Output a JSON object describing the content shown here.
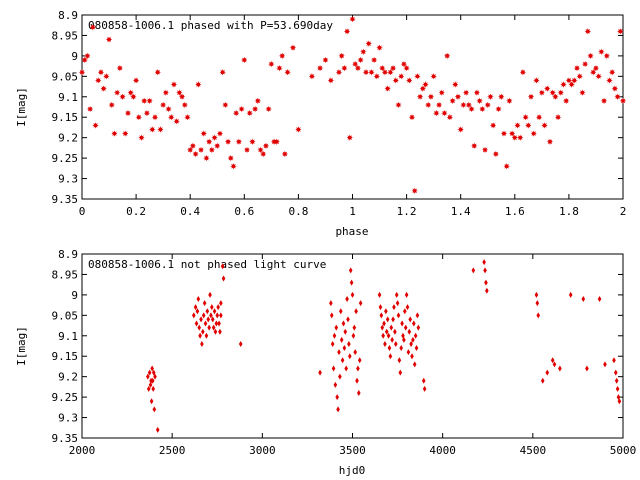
{
  "chart_data": [
    {
      "type": "scatter",
      "title": "080858-1006.1 phased with P=53.690day",
      "xlabel": "phase",
      "ylabel": "I[mag]",
      "xlim": [
        0,
        2
      ],
      "ylim": [
        9.35,
        8.9
      ],
      "y_inverted": true,
      "x_ticks": [
        "0",
        "0.2",
        "0.4",
        "0.6",
        "0.8",
        "1",
        "1.2",
        "1.4",
        "1.6",
        "1.8",
        "2"
      ],
      "y_ticks": [
        "8.9",
        "8.95",
        "9",
        "9.05",
        "9.1",
        "9.15",
        "9.2",
        "9.25",
        "9.3",
        "9.35"
      ],
      "marker": "star",
      "color": "#e00000",
      "points": [
        [
          0.0,
          9.04
        ],
        [
          0.01,
          9.01
        ],
        [
          0.02,
          9.0
        ],
        [
          0.03,
          9.13
        ],
        [
          0.04,
          8.93
        ],
        [
          0.05,
          9.17
        ],
        [
          0.06,
          9.06
        ],
        [
          0.07,
          9.04
        ],
        [
          0.08,
          9.08
        ],
        [
          0.09,
          9.05
        ],
        [
          0.1,
          8.96
        ],
        [
          0.11,
          9.12
        ],
        [
          0.12,
          9.19
        ],
        [
          0.13,
          9.09
        ],
        [
          0.14,
          9.03
        ],
        [
          0.15,
          9.1
        ],
        [
          0.16,
          9.19
        ],
        [
          0.17,
          9.14
        ],
        [
          0.18,
          9.09
        ],
        [
          0.19,
          9.1
        ],
        [
          0.2,
          9.06
        ],
        [
          0.21,
          9.15
        ],
        [
          0.22,
          9.2
        ],
        [
          0.23,
          9.11
        ],
        [
          0.24,
          9.14
        ],
        [
          0.25,
          9.11
        ],
        [
          0.26,
          9.18
        ],
        [
          0.27,
          9.15
        ],
        [
          0.28,
          9.04
        ],
        [
          0.29,
          9.18
        ],
        [
          0.3,
          9.12
        ],
        [
          0.31,
          9.09
        ],
        [
          0.32,
          9.13
        ],
        [
          0.33,
          9.15
        ],
        [
          0.34,
          9.07
        ],
        [
          0.35,
          9.16
        ],
        [
          0.36,
          9.09
        ],
        [
          0.37,
          9.1
        ],
        [
          0.38,
          9.12
        ],
        [
          0.39,
          9.15
        ],
        [
          0.4,
          9.23
        ],
        [
          0.41,
          9.22
        ],
        [
          0.42,
          9.24
        ],
        [
          0.43,
          9.07
        ],
        [
          0.44,
          9.23
        ],
        [
          0.45,
          9.19
        ],
        [
          0.46,
          9.25
        ],
        [
          0.47,
          9.21
        ],
        [
          0.48,
          9.23
        ],
        [
          0.49,
          9.2
        ],
        [
          0.5,
          9.22
        ],
        [
          0.51,
          9.19
        ],
        [
          0.52,
          9.04
        ],
        [
          0.53,
          9.12
        ],
        [
          0.54,
          9.21
        ],
        [
          0.55,
          9.25
        ],
        [
          0.56,
          9.27
        ],
        [
          0.57,
          9.14
        ],
        [
          0.58,
          9.21
        ],
        [
          0.59,
          9.13
        ],
        [
          0.6,
          9.01
        ],
        [
          0.61,
          9.23
        ],
        [
          0.62,
          9.14
        ],
        [
          0.63,
          9.21
        ],
        [
          0.64,
          9.13
        ],
        [
          0.65,
          9.11
        ],
        [
          0.66,
          9.23
        ],
        [
          0.67,
          9.24
        ],
        [
          0.68,
          9.22
        ],
        [
          0.69,
          9.13
        ],
        [
          0.7,
          9.02
        ],
        [
          0.71,
          9.21
        ],
        [
          0.72,
          9.21
        ],
        [
          0.73,
          9.03
        ],
        [
          0.74,
          9.0
        ],
        [
          0.75,
          9.24
        ],
        [
          0.76,
          9.04
        ],
        [
          0.78,
          8.98
        ],
        [
          0.8,
          9.18
        ],
        [
          0.85,
          9.05
        ],
        [
          0.88,
          9.03
        ],
        [
          0.9,
          9.01
        ],
        [
          0.92,
          9.06
        ],
        [
          0.95,
          9.04
        ],
        [
          0.96,
          9.0
        ],
        [
          0.97,
          9.03
        ],
        [
          0.98,
          8.94
        ],
        [
          0.99,
          9.2
        ],
        [
          1.0,
          8.91
        ],
        [
          1.01,
          9.02
        ],
        [
          1.02,
          9.03
        ],
        [
          1.03,
          9.01
        ],
        [
          1.04,
          8.99
        ],
        [
          1.05,
          9.04
        ],
        [
          1.06,
          8.97
        ],
        [
          1.07,
          9.04
        ],
        [
          1.08,
          9.01
        ],
        [
          1.09,
          9.05
        ],
        [
          1.1,
          8.98
        ],
        [
          1.11,
          9.03
        ],
        [
          1.12,
          9.04
        ],
        [
          1.13,
          9.08
        ],
        [
          1.14,
          9.04
        ],
        [
          1.15,
          9.03
        ],
        [
          1.16,
          9.06
        ],
        [
          1.17,
          9.12
        ],
        [
          1.18,
          9.05
        ],
        [
          1.19,
          9.02
        ],
        [
          1.2,
          9.03
        ],
        [
          1.21,
          9.06
        ],
        [
          1.22,
          9.15
        ],
        [
          1.23,
          9.33
        ],
        [
          1.24,
          9.05
        ],
        [
          1.25,
          9.1
        ],
        [
          1.26,
          9.08
        ],
        [
          1.27,
          9.07
        ],
        [
          1.28,
          9.12
        ],
        [
          1.29,
          9.1
        ],
        [
          1.3,
          9.05
        ],
        [
          1.31,
          9.14
        ],
        [
          1.32,
          9.12
        ],
        [
          1.33,
          9.09
        ],
        [
          1.34,
          9.14
        ],
        [
          1.35,
          9.0
        ],
        [
          1.36,
          9.15
        ],
        [
          1.37,
          9.11
        ],
        [
          1.38,
          9.07
        ],
        [
          1.39,
          9.1
        ],
        [
          1.4,
          9.18
        ],
        [
          1.41,
          9.12
        ],
        [
          1.42,
          9.09
        ],
        [
          1.43,
          9.12
        ],
        [
          1.44,
          9.13
        ],
        [
          1.45,
          9.22
        ],
        [
          1.46,
          9.09
        ],
        [
          1.47,
          9.11
        ],
        [
          1.48,
          9.13
        ],
        [
          1.49,
          9.23
        ],
        [
          1.5,
          9.12
        ],
        [
          1.51,
          9.1
        ],
        [
          1.52,
          9.17
        ],
        [
          1.53,
          9.24
        ],
        [
          1.54,
          9.13
        ],
        [
          1.55,
          9.1
        ],
        [
          1.56,
          9.19
        ],
        [
          1.57,
          9.27
        ],
        [
          1.58,
          9.11
        ],
        [
          1.59,
          9.19
        ],
        [
          1.6,
          9.2
        ],
        [
          1.61,
          9.17
        ],
        [
          1.62,
          9.2
        ],
        [
          1.63,
          9.04
        ],
        [
          1.64,
          9.15
        ],
        [
          1.65,
          9.17
        ],
        [
          1.66,
          9.1
        ],
        [
          1.67,
          9.19
        ],
        [
          1.68,
          9.06
        ],
        [
          1.69,
          9.15
        ],
        [
          1.7,
          9.09
        ],
        [
          1.71,
          9.17
        ],
        [
          1.72,
          9.08
        ],
        [
          1.73,
          9.21
        ],
        [
          1.74,
          9.09
        ],
        [
          1.75,
          9.1
        ],
        [
          1.76,
          9.15
        ],
        [
          1.77,
          9.09
        ],
        [
          1.78,
          9.07
        ],
        [
          1.79,
          9.11
        ],
        [
          1.8,
          9.06
        ],
        [
          1.81,
          9.07
        ],
        [
          1.82,
          9.06
        ],
        [
          1.83,
          9.03
        ],
        [
          1.84,
          9.05
        ],
        [
          1.85,
          9.09
        ],
        [
          1.86,
          9.02
        ],
        [
          1.87,
          8.94
        ],
        [
          1.88,
          9.0
        ],
        [
          1.89,
          9.04
        ],
        [
          1.9,
          9.03
        ],
        [
          1.91,
          9.05
        ],
        [
          1.92,
          8.99
        ],
        [
          1.93,
          9.11
        ],
        [
          1.94,
          9.0
        ],
        [
          1.95,
          9.06
        ],
        [
          1.96,
          9.04
        ],
        [
          1.97,
          9.08
        ],
        [
          1.98,
          9.1
        ],
        [
          1.99,
          8.94
        ],
        [
          2.0,
          9.11
        ]
      ]
    },
    {
      "type": "scatter",
      "title": "080858-1006.1 not phased light curve",
      "xlabel": "hjd0",
      "ylabel": "I[mag]",
      "xlim": [
        2000,
        5000
      ],
      "ylim": [
        9.35,
        8.9
      ],
      "y_inverted": true,
      "x_ticks": [
        "2000",
        "2500",
        "3000",
        "3500",
        "4000",
        "4500",
        "5000"
      ],
      "y_ticks": [
        "8.9",
        "8.95",
        "9",
        "9.05",
        "9.1",
        "9.15",
        "9.2",
        "9.25",
        "9.3",
        "9.35"
      ],
      "marker": "diamond",
      "color": "#e00000",
      "points": [
        [
          2365,
          9.2
        ],
        [
          2370,
          9.23
        ],
        [
          2375,
          9.19
        ],
        [
          2380,
          9.22
        ],
        [
          2383,
          9.21
        ],
        [
          2386,
          9.26
        ],
        [
          2389,
          9.18
        ],
        [
          2392,
          9.21
        ],
        [
          2395,
          9.23
        ],
        [
          2398,
          9.19
        ],
        [
          2401,
          9.28
        ],
        [
          2405,
          9.2
        ],
        [
          2420,
          9.33
        ],
        [
          2620,
          9.05
        ],
        [
          2630,
          9.03
        ],
        [
          2635,
          9.07
        ],
        [
          2640,
          9.04
        ],
        [
          2645,
          9.01
        ],
        [
          2650,
          9.08
        ],
        [
          2655,
          9.1
        ],
        [
          2660,
          9.06
        ],
        [
          2665,
          9.12
        ],
        [
          2670,
          9.09
        ],
        [
          2675,
          9.05
        ],
        [
          2680,
          9.02
        ],
        [
          2685,
          9.07
        ],
        [
          2690,
          9.1
        ],
        [
          2695,
          9.04
        ],
        [
          2700,
          9.06
        ],
        [
          2705,
          9.08
        ],
        [
          2710,
          9.0
        ],
        [
          2715,
          9.05
        ],
        [
          2720,
          9.03
        ],
        [
          2725,
          9.06
        ],
        [
          2730,
          9.08
        ],
        [
          2735,
          9.04
        ],
        [
          2740,
          9.09
        ],
        [
          2745,
          9.07
        ],
        [
          2750,
          9.05
        ],
        [
          2755,
          9.03
        ],
        [
          2760,
          9.07
        ],
        [
          2765,
          9.09
        ],
        [
          2770,
          9.02
        ],
        [
          2780,
          8.93
        ],
        [
          2785,
          8.96
        ],
        [
          2880,
          9.12
        ],
        [
          2770,
          9.05
        ],
        [
          3320,
          9.19
        ],
        [
          3380,
          9.02
        ],
        [
          3385,
          9.05
        ],
        [
          3390,
          9.12
        ],
        [
          3395,
          9.18
        ],
        [
          3400,
          9.1
        ],
        [
          3405,
          9.22
        ],
        [
          3410,
          9.08
        ],
        [
          3415,
          9.25
        ],
        [
          3420,
          9.28
        ],
        [
          3425,
          9.14
        ],
        [
          3430,
          9.2
        ],
        [
          3435,
          9.04
        ],
        [
          3440,
          9.11
        ],
        [
          3445,
          9.16
        ],
        [
          3450,
          9.07
        ],
        [
          3455,
          9.13
        ],
        [
          3460,
          9.09
        ],
        [
          3465,
          9.18
        ],
        [
          3470,
          9.01
        ],
        [
          3475,
          9.06
        ],
        [
          3480,
          9.12
        ],
        [
          3485,
          9.15
        ],
        [
          3490,
          8.94
        ],
        [
          3495,
          8.97
        ],
        [
          3500,
          9.0
        ],
        [
          3505,
          9.1
        ],
        [
          3510,
          9.08
        ],
        [
          3515,
          9.14
        ],
        [
          3520,
          9.04
        ],
        [
          3525,
          9.21
        ],
        [
          3530,
          9.18
        ],
        [
          3535,
          9.24
        ],
        [
          3540,
          9.16
        ],
        [
          3545,
          9.02
        ],
        [
          3650,
          9.0
        ],
        [
          3655,
          9.03
        ],
        [
          3660,
          9.05
        ],
        [
          3665,
          9.08
        ],
        [
          3670,
          9.1
        ],
        [
          3675,
          9.07
        ],
        [
          3680,
          9.12
        ],
        [
          3685,
          9.04
        ],
        [
          3690,
          9.09
        ],
        [
          3695,
          9.06
        ],
        [
          3700,
          9.1
        ],
        [
          3705,
          9.13
        ],
        [
          3710,
          9.15
        ],
        [
          3715,
          9.08
        ],
        [
          3720,
          9.11
        ],
        [
          3725,
          9.06
        ],
        [
          3730,
          9.03
        ],
        [
          3735,
          9.09
        ],
        [
          3740,
          9.12
        ],
        [
          3745,
          9.0
        ],
        [
          3750,
          9.02
        ],
        [
          3755,
          9.05
        ],
        [
          3760,
          9.16
        ],
        [
          3765,
          9.19
        ],
        [
          3770,
          9.13
        ],
        [
          3775,
          9.07
        ],
        [
          3780,
          9.1
        ],
        [
          3785,
          9.11
        ],
        [
          3790,
          9.04
        ],
        [
          3795,
          9.08
        ],
        [
          3800,
          9.0
        ],
        [
          3805,
          9.03
        ],
        [
          3810,
          9.14
        ],
        [
          3815,
          9.09
        ],
        [
          3820,
          9.06
        ],
        [
          3825,
          9.12
        ],
        [
          3830,
          9.15
        ],
        [
          3835,
          9.11
        ],
        [
          3840,
          9.07
        ],
        [
          3845,
          9.17
        ],
        [
          3850,
          9.1
        ],
        [
          3855,
          9.13
        ],
        [
          3860,
          9.05
        ],
        [
          3865,
          9.08
        ],
        [
          3895,
          9.21
        ],
        [
          3900,
          9.23
        ],
        [
          4170,
          8.94
        ],
        [
          4230,
          8.92
        ],
        [
          4235,
          8.94
        ],
        [
          4240,
          8.97
        ],
        [
          4245,
          8.99
        ],
        [
          4520,
          9.0
        ],
        [
          4525,
          9.02
        ],
        [
          4530,
          9.05
        ],
        [
          4555,
          9.21
        ],
        [
          4580,
          9.19
        ],
        [
          4610,
          9.16
        ],
        [
          4620,
          9.17
        ],
        [
          4650,
          9.18
        ],
        [
          4710,
          9.0
        ],
        [
          4780,
          9.01
        ],
        [
          4800,
          9.18
        ],
        [
          4870,
          9.01
        ],
        [
          4900,
          9.17
        ],
        [
          4950,
          9.16
        ],
        [
          4960,
          9.19
        ],
        [
          4965,
          9.21
        ],
        [
          4970,
          9.23
        ],
        [
          4975,
          9.25
        ],
        [
          4980,
          9.26
        ]
      ]
    }
  ]
}
